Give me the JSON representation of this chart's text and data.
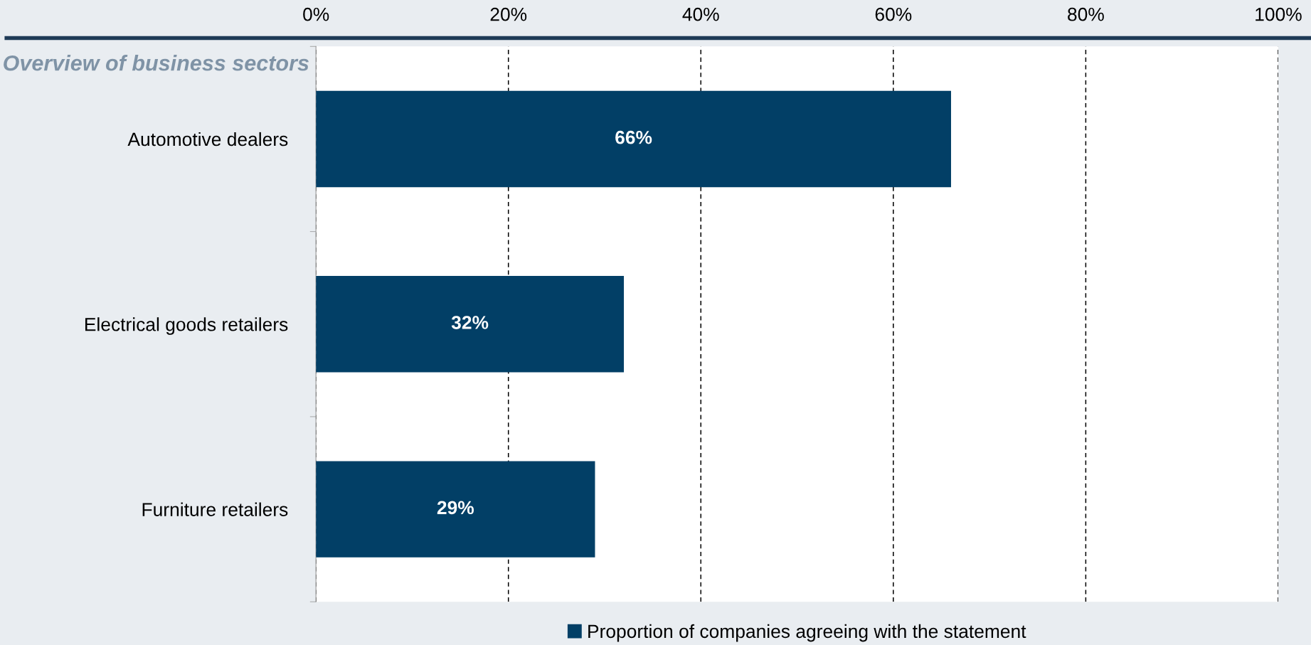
{
  "chart_data": {
    "type": "bar",
    "orientation": "horizontal",
    "title": "Overview of business sectors",
    "categories": [
      "Automotive dealers",
      "Electrical goods retailers",
      "Furniture retailers"
    ],
    "series": [
      {
        "name": "Proportion of companies agreeing with the statement",
        "color": "#023f66",
        "values": [
          66,
          32,
          29
        ]
      }
    ],
    "value_labels": [
      "66%",
      "32%",
      "29%"
    ],
    "xlim": [
      0,
      100
    ],
    "xticks": [
      {
        "value": 0,
        "label": "0%"
      },
      {
        "value": 20,
        "label": "20%"
      },
      {
        "value": 40,
        "label": "40%"
      },
      {
        "value": 60,
        "label": "60%"
      },
      {
        "value": 80,
        "label": "80%"
      },
      {
        "value": 100,
        "label": "100%"
      }
    ],
    "grid": "x",
    "legend": "bottom"
  }
}
